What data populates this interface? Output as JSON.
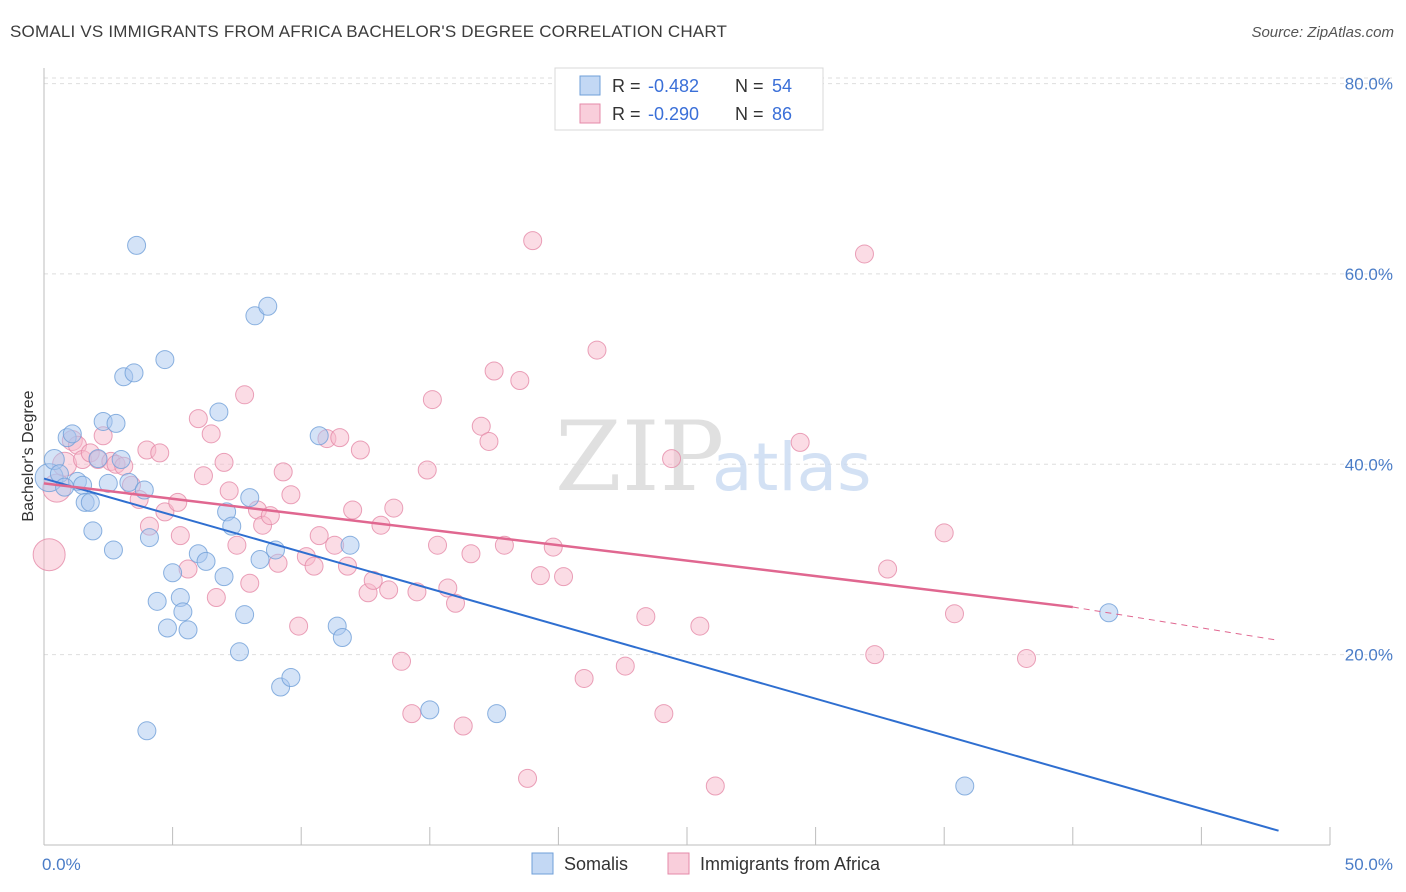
{
  "header": {
    "title": "SOMALI VS IMMIGRANTS FROM AFRICA BACHELOR'S DEGREE CORRELATION CHART",
    "source": "Source: ZipAtlas.com"
  },
  "watermark": {
    "zip": "ZIP",
    "atlas": "atlas"
  },
  "colors": {
    "somali_fill": "#a9c8ef",
    "somali_stroke": "#6f9fd8",
    "somali_line": "#2f6fd0",
    "africa_fill": "#f7b9cc",
    "africa_stroke": "#e58aa8",
    "africa_line": "#e06790",
    "grid": "#dedede",
    "tick_text": "#4a7cc7"
  },
  "legend": {
    "rows": [
      {
        "r_label": "R = ",
        "r_value": "-0.482",
        "n_label": "N = ",
        "n_value": "54"
      },
      {
        "r_label": "R = ",
        "r_value": "-0.290",
        "n_label": "N = ",
        "n_value": "86"
      }
    ]
  },
  "chart_data": {
    "type": "scatter",
    "title": "SOMALI VS IMMIGRANTS FROM AFRICA BACHELOR'S DEGREE CORRELATION CHART",
    "xlabel": "",
    "ylabel": "Bachelor's Degree",
    "xlim": [
      0,
      50
    ],
    "ylim": [
      0,
      84
    ],
    "x_tick_labels": [
      "0.0%",
      "50.0%"
    ],
    "y_ticks": [
      20,
      40,
      60,
      80
    ],
    "y_tick_labels": [
      "20.0%",
      "40.0%",
      "60.0%",
      "80.0%"
    ],
    "grid": true,
    "legend_placement": "top-center",
    "series": [
      {
        "name": "Somalis",
        "trend": {
          "x": [
            0,
            48
          ],
          "y": [
            38.5,
            1.5
          ]
        },
        "points": [
          {
            "x": 0.2,
            "y": 38.6,
            "s": 14
          },
          {
            "x": 0.4,
            "y": 40.5,
            "s": 10
          },
          {
            "x": 0.6,
            "y": 39.0,
            "s": 9
          },
          {
            "x": 0.9,
            "y": 42.8,
            "s": 9
          },
          {
            "x": 1.1,
            "y": 43.2,
            "s": 9
          },
          {
            "x": 1.3,
            "y": 38.2,
            "s": 9
          },
          {
            "x": 1.5,
            "y": 37.8,
            "s": 9
          },
          {
            "x": 1.6,
            "y": 36.0,
            "s": 9
          },
          {
            "x": 1.8,
            "y": 36.0,
            "s": 9
          },
          {
            "x": 1.9,
            "y": 33.0,
            "s": 9
          },
          {
            "x": 2.1,
            "y": 40.6,
            "s": 9
          },
          {
            "x": 2.3,
            "y": 44.5,
            "s": 9
          },
          {
            "x": 2.5,
            "y": 38.0,
            "s": 9
          },
          {
            "x": 2.7,
            "y": 31.0,
            "s": 9
          },
          {
            "x": 2.8,
            "y": 44.3,
            "s": 9
          },
          {
            "x": 3.0,
            "y": 40.5,
            "s": 9
          },
          {
            "x": 3.1,
            "y": 49.2,
            "s": 9
          },
          {
            "x": 3.3,
            "y": 38.1,
            "s": 9
          },
          {
            "x": 3.5,
            "y": 49.6,
            "s": 9
          },
          {
            "x": 3.6,
            "y": 63.0,
            "s": 9
          },
          {
            "x": 3.9,
            "y": 37.3,
            "s": 9
          },
          {
            "x": 4.0,
            "y": 12.0,
            "s": 9
          },
          {
            "x": 4.1,
            "y": 32.3,
            "s": 9
          },
          {
            "x": 4.4,
            "y": 25.6,
            "s": 9
          },
          {
            "x": 4.7,
            "y": 51.0,
            "s": 9
          },
          {
            "x": 4.8,
            "y": 22.8,
            "s": 9
          },
          {
            "x": 5.0,
            "y": 28.6,
            "s": 9
          },
          {
            "x": 5.3,
            "y": 26.0,
            "s": 9
          },
          {
            "x": 5.4,
            "y": 24.5,
            "s": 9
          },
          {
            "x": 5.6,
            "y": 22.6,
            "s": 9
          },
          {
            "x": 6.0,
            "y": 30.6,
            "s": 9
          },
          {
            "x": 6.3,
            "y": 29.8,
            "s": 9
          },
          {
            "x": 6.8,
            "y": 45.5,
            "s": 9
          },
          {
            "x": 7.0,
            "y": 28.2,
            "s": 9
          },
          {
            "x": 7.1,
            "y": 35.0,
            "s": 9
          },
          {
            "x": 7.3,
            "y": 33.5,
            "s": 9
          },
          {
            "x": 7.6,
            "y": 20.3,
            "s": 9
          },
          {
            "x": 7.8,
            "y": 24.2,
            "s": 9
          },
          {
            "x": 8.0,
            "y": 36.5,
            "s": 9
          },
          {
            "x": 8.2,
            "y": 55.6,
            "s": 9
          },
          {
            "x": 8.4,
            "y": 30.0,
            "s": 9
          },
          {
            "x": 8.7,
            "y": 56.6,
            "s": 9
          },
          {
            "x": 9.0,
            "y": 31.0,
            "s": 9
          },
          {
            "x": 9.2,
            "y": 16.6,
            "s": 9
          },
          {
            "x": 9.6,
            "y": 17.6,
            "s": 9
          },
          {
            "x": 10.7,
            "y": 43.0,
            "s": 9
          },
          {
            "x": 11.4,
            "y": 23.0,
            "s": 9
          },
          {
            "x": 11.6,
            "y": 21.8,
            "s": 9
          },
          {
            "x": 11.9,
            "y": 31.5,
            "s": 9
          },
          {
            "x": 15.0,
            "y": 14.2,
            "s": 9
          },
          {
            "x": 17.6,
            "y": 13.8,
            "s": 9
          },
          {
            "x": 35.8,
            "y": 6.2,
            "s": 9
          },
          {
            "x": 41.4,
            "y": 24.4,
            "s": 9
          },
          {
            "x": 0.8,
            "y": 37.6,
            "s": 9
          }
        ]
      },
      {
        "name": "Immigrants from Africa",
        "trend": {
          "x": [
            0,
            40
          ],
          "y": [
            38.0,
            25.0
          ]
        },
        "trend_dashed": {
          "x": [
            40,
            48
          ],
          "y": [
            25.0,
            21.5
          ]
        },
        "points": [
          {
            "x": 0.2,
            "y": 30.5,
            "s": 16
          },
          {
            "x": 0.5,
            "y": 37.5,
            "s": 14
          },
          {
            "x": 0.8,
            "y": 40.0,
            "s": 12
          },
          {
            "x": 1.1,
            "y": 42.5,
            "s": 10
          },
          {
            "x": 1.3,
            "y": 42.0,
            "s": 9
          },
          {
            "x": 1.5,
            "y": 40.5,
            "s": 9
          },
          {
            "x": 1.8,
            "y": 41.2,
            "s": 9
          },
          {
            "x": 2.1,
            "y": 40.5,
            "s": 9
          },
          {
            "x": 2.3,
            "y": 43.0,
            "s": 9
          },
          {
            "x": 2.6,
            "y": 40.3,
            "s": 9
          },
          {
            "x": 2.8,
            "y": 40.0,
            "s": 9
          },
          {
            "x": 3.1,
            "y": 39.8,
            "s": 9
          },
          {
            "x": 3.4,
            "y": 37.8,
            "s": 9
          },
          {
            "x": 3.7,
            "y": 36.3,
            "s": 9
          },
          {
            "x": 4.0,
            "y": 41.5,
            "s": 9
          },
          {
            "x": 4.1,
            "y": 33.5,
            "s": 9
          },
          {
            "x": 4.5,
            "y": 41.2,
            "s": 9
          },
          {
            "x": 4.7,
            "y": 35.0,
            "s": 9
          },
          {
            "x": 5.2,
            "y": 36.0,
            "s": 9
          },
          {
            "x": 5.3,
            "y": 32.5,
            "s": 9
          },
          {
            "x": 5.6,
            "y": 29.0,
            "s": 9
          },
          {
            "x": 6.0,
            "y": 44.8,
            "s": 9
          },
          {
            "x": 6.2,
            "y": 38.8,
            "s": 9
          },
          {
            "x": 6.5,
            "y": 43.2,
            "s": 9
          },
          {
            "x": 6.7,
            "y": 26.0,
            "s": 9
          },
          {
            "x": 7.0,
            "y": 40.2,
            "s": 9
          },
          {
            "x": 7.2,
            "y": 37.2,
            "s": 9
          },
          {
            "x": 7.5,
            "y": 31.5,
            "s": 9
          },
          {
            "x": 7.8,
            "y": 47.3,
            "s": 9
          },
          {
            "x": 8.0,
            "y": 27.5,
            "s": 9
          },
          {
            "x": 8.3,
            "y": 35.2,
            "s": 9
          },
          {
            "x": 8.5,
            "y": 33.6,
            "s": 9
          },
          {
            "x": 8.8,
            "y": 34.6,
            "s": 9
          },
          {
            "x": 9.1,
            "y": 29.6,
            "s": 9
          },
          {
            "x": 9.3,
            "y": 39.2,
            "s": 9
          },
          {
            "x": 9.6,
            "y": 36.8,
            "s": 9
          },
          {
            "x": 9.9,
            "y": 23.0,
            "s": 9
          },
          {
            "x": 10.2,
            "y": 30.3,
            "s": 9
          },
          {
            "x": 10.5,
            "y": 29.3,
            "s": 9
          },
          {
            "x": 10.7,
            "y": 32.5,
            "s": 9
          },
          {
            "x": 11.0,
            "y": 42.7,
            "s": 9
          },
          {
            "x": 11.3,
            "y": 31.5,
            "s": 9
          },
          {
            "x": 11.5,
            "y": 42.8,
            "s": 9
          },
          {
            "x": 11.8,
            "y": 29.3,
            "s": 9
          },
          {
            "x": 12.0,
            "y": 35.2,
            "s": 9
          },
          {
            "x": 12.3,
            "y": 41.5,
            "s": 9
          },
          {
            "x": 12.6,
            "y": 26.5,
            "s": 9
          },
          {
            "x": 12.8,
            "y": 27.8,
            "s": 9
          },
          {
            "x": 13.1,
            "y": 33.6,
            "s": 9
          },
          {
            "x": 13.4,
            "y": 26.8,
            "s": 9
          },
          {
            "x": 13.6,
            "y": 35.4,
            "s": 9
          },
          {
            "x": 13.9,
            "y": 19.3,
            "s": 9
          },
          {
            "x": 14.3,
            "y": 13.8,
            "s": 9
          },
          {
            "x": 14.5,
            "y": 26.6,
            "s": 9
          },
          {
            "x": 14.9,
            "y": 39.4,
            "s": 9
          },
          {
            "x": 15.1,
            "y": 46.8,
            "s": 9
          },
          {
            "x": 15.3,
            "y": 31.5,
            "s": 9
          },
          {
            "x": 15.7,
            "y": 27.0,
            "s": 9
          },
          {
            "x": 16.0,
            "y": 25.4,
            "s": 9
          },
          {
            "x": 16.3,
            "y": 12.5,
            "s": 9
          },
          {
            "x": 16.6,
            "y": 30.6,
            "s": 9
          },
          {
            "x": 17.0,
            "y": 44.0,
            "s": 9
          },
          {
            "x": 17.3,
            "y": 42.4,
            "s": 9
          },
          {
            "x": 17.5,
            "y": 49.8,
            "s": 9
          },
          {
            "x": 17.9,
            "y": 31.5,
            "s": 9
          },
          {
            "x": 18.5,
            "y": 48.8,
            "s": 9
          },
          {
            "x": 18.8,
            "y": 7.0,
            "s": 9
          },
          {
            "x": 19.0,
            "y": 63.5,
            "s": 9
          },
          {
            "x": 19.3,
            "y": 28.3,
            "s": 9
          },
          {
            "x": 19.8,
            "y": 31.3,
            "s": 9
          },
          {
            "x": 20.2,
            "y": 28.2,
            "s": 9
          },
          {
            "x": 21.0,
            "y": 17.5,
            "s": 9
          },
          {
            "x": 21.5,
            "y": 52.0,
            "s": 9
          },
          {
            "x": 22.6,
            "y": 18.8,
            "s": 9
          },
          {
            "x": 23.4,
            "y": 24.0,
            "s": 9
          },
          {
            "x": 24.1,
            "y": 13.8,
            "s": 9
          },
          {
            "x": 24.4,
            "y": 40.6,
            "s": 9
          },
          {
            "x": 25.5,
            "y": 23.0,
            "s": 9
          },
          {
            "x": 26.1,
            "y": 6.2,
            "s": 9
          },
          {
            "x": 29.4,
            "y": 42.3,
            "s": 9
          },
          {
            "x": 31.9,
            "y": 62.1,
            "s": 9
          },
          {
            "x": 32.3,
            "y": 20.0,
            "s": 9
          },
          {
            "x": 32.8,
            "y": 29.0,
            "s": 9
          },
          {
            "x": 35.0,
            "y": 32.8,
            "s": 9
          },
          {
            "x": 35.4,
            "y": 24.3,
            "s": 9
          },
          {
            "x": 38.2,
            "y": 19.6,
            "s": 9
          }
        ]
      }
    ]
  }
}
